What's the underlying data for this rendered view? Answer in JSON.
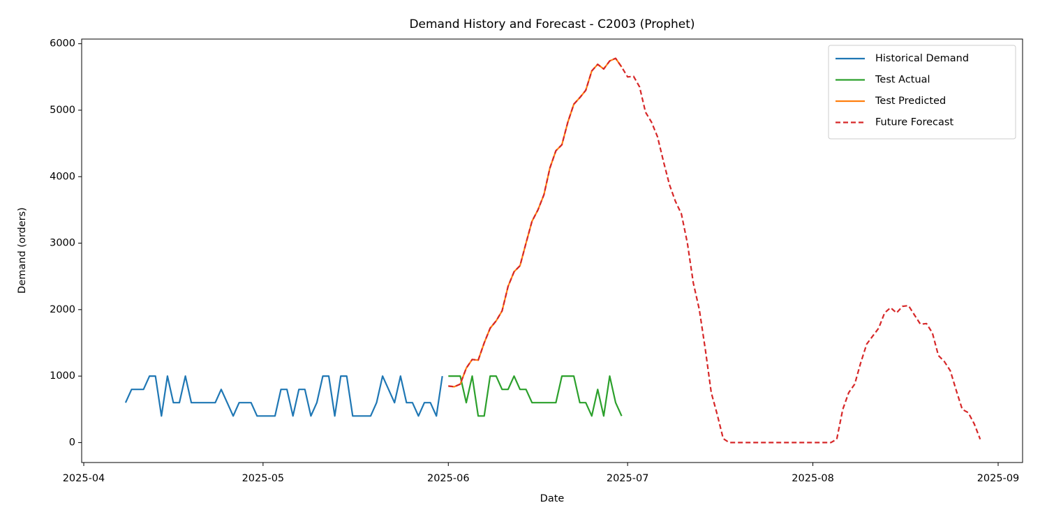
{
  "chart_data": {
    "type": "line",
    "title": "Demand History and Forecast - C2003 (Prophet)",
    "x_label": "Date",
    "y_label": "Demand (orders)",
    "xlim": [
      "2025-04",
      "2025-09"
    ],
    "xticks": [
      "2025-04",
      "2025-05",
      "2025-06",
      "2025-07",
      "2025-08",
      "2025-09"
    ],
    "ylim": [
      -300,
      6070
    ],
    "yticks": [
      0,
      1000,
      2000,
      3000,
      4000,
      5000,
      6000
    ],
    "grid": false,
    "legend": "upper right",
    "series": [
      {
        "name": "Historical Demand",
        "color": "#1f77b4",
        "dash": false,
        "values": [
          null,
          null,
          null,
          null,
          null,
          null,
          null,
          600,
          800,
          800,
          800,
          1000,
          1000,
          400,
          1000,
          600,
          600,
          1000,
          600,
          600,
          600,
          600,
          600,
          800,
          600,
          400,
          600,
          600,
          600,
          400,
          400,
          400,
          400,
          800,
          800,
          400,
          800,
          800,
          400,
          600,
          1000,
          1000,
          400,
          1000,
          1000,
          400,
          400,
          400,
          400,
          600,
          1000,
          800,
          600,
          1000,
          600,
          600,
          400,
          600,
          600,
          400,
          1000
        ]
      },
      {
        "name": "Test Actual",
        "color": "#2ca02c",
        "dash": false,
        "values": [
          null,
          null,
          null,
          null,
          null,
          null,
          null,
          null,
          null,
          null,
          null,
          null,
          null,
          null,
          null,
          null,
          null,
          null,
          null,
          null,
          null,
          null,
          null,
          null,
          null,
          null,
          null,
          null,
          null,
          null,
          null,
          null,
          null,
          null,
          null,
          null,
          null,
          null,
          null,
          null,
          null,
          null,
          null,
          null,
          null,
          null,
          null,
          null,
          null,
          null,
          null,
          null,
          null,
          null,
          null,
          null,
          null,
          null,
          null,
          null,
          null,
          1000,
          1000,
          1000,
          600,
          1000,
          400,
          400,
          1000,
          1000,
          800,
          800,
          1000,
          800,
          800,
          600,
          600,
          600,
          600,
          600,
          1000,
          1000,
          1000,
          600,
          600,
          400,
          800,
          400,
          1000,
          600,
          400
        ]
      },
      {
        "name": "Test Predicted",
        "color": "#ff7f0e",
        "dash": false,
        "values": [
          null,
          null,
          null,
          null,
          null,
          null,
          null,
          null,
          null,
          null,
          null,
          null,
          null,
          null,
          null,
          null,
          null,
          null,
          null,
          null,
          null,
          null,
          null,
          null,
          null,
          null,
          null,
          null,
          null,
          null,
          null,
          null,
          null,
          null,
          null,
          null,
          null,
          null,
          null,
          null,
          null,
          null,
          null,
          null,
          null,
          null,
          null,
          null,
          null,
          null,
          null,
          null,
          null,
          null,
          null,
          null,
          null,
          null,
          null,
          null,
          null,
          850,
          840,
          880,
          1120,
          1250,
          1240,
          1500,
          1720,
          1830,
          1980,
          2350,
          2570,
          2660,
          3000,
          3330,
          3500,
          3730,
          4130,
          4390,
          4480,
          4820,
          5090,
          5190,
          5300,
          5590,
          5690,
          5620,
          5740,
          5780,
          5650
        ]
      },
      {
        "name": "Future Forecast",
        "color": "#d62728",
        "dash": true,
        "values": [
          null,
          null,
          null,
          null,
          null,
          null,
          null,
          null,
          null,
          null,
          null,
          null,
          null,
          null,
          null,
          null,
          null,
          null,
          null,
          null,
          null,
          null,
          null,
          null,
          null,
          null,
          null,
          null,
          null,
          null,
          null,
          null,
          null,
          null,
          null,
          null,
          null,
          null,
          null,
          null,
          null,
          null,
          null,
          null,
          null,
          null,
          null,
          null,
          null,
          null,
          null,
          null,
          null,
          null,
          null,
          null,
          null,
          null,
          null,
          null,
          null,
          850,
          840,
          880,
          1120,
          1250,
          1240,
          1500,
          1720,
          1830,
          1980,
          2350,
          2570,
          2660,
          3000,
          3330,
          3500,
          3730,
          4130,
          4390,
          4480,
          4820,
          5090,
          5190,
          5300,
          5590,
          5690,
          5620,
          5740,
          5780,
          5650,
          5500,
          5510,
          5350,
          4970,
          4820,
          4600,
          4230,
          3880,
          3630,
          3440,
          3000,
          2400,
          2000,
          1400,
          750,
          420,
          60,
          0,
          0,
          0,
          0,
          0,
          0,
          0,
          0,
          0,
          0,
          0,
          0,
          0,
          0,
          0,
          0,
          0,
          0,
          50,
          500,
          750,
          880,
          1200,
          1480,
          1600,
          1720,
          1950,
          2030,
          1950,
          2050,
          2060,
          1920,
          1780,
          1790,
          1650,
          1310,
          1220,
          1080,
          780,
          500,
          450,
          280,
          50
        ]
      }
    ]
  }
}
